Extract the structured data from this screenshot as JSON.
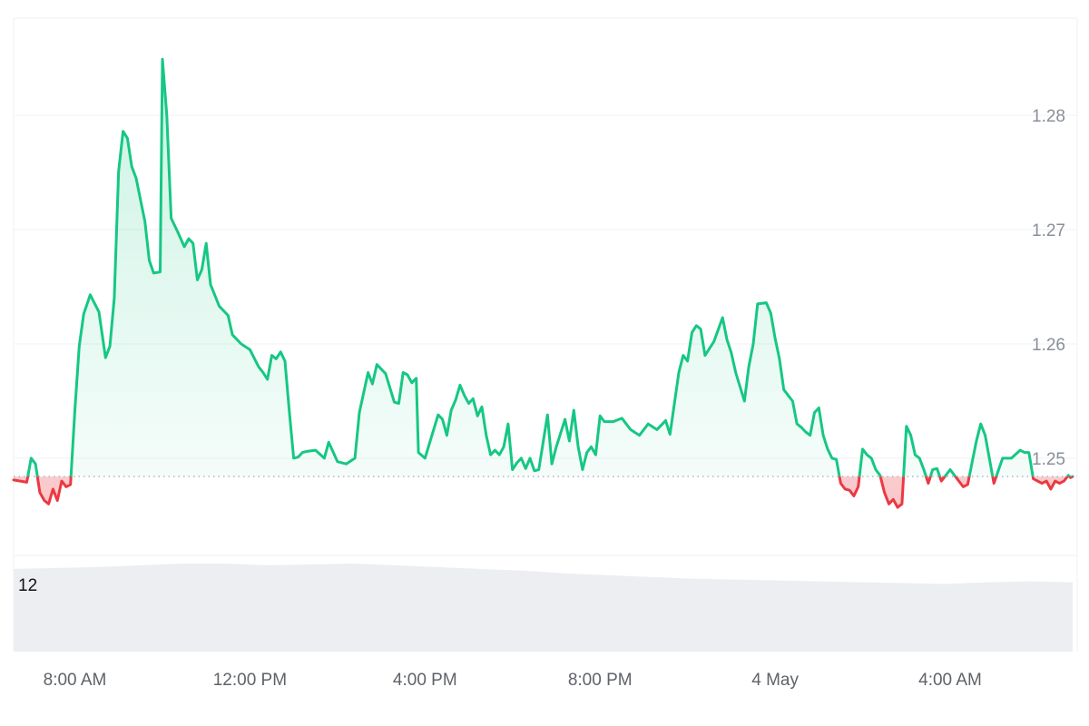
{
  "chart_data": {
    "type": "line",
    "baseline": 1.2484,
    "y_ticks": [
      1.25,
      1.26,
      1.27,
      1.28
    ],
    "y_tick_labels": [
      "1.25",
      "1.26",
      "1.27",
      "1.28"
    ],
    "ylim": [
      1.2415,
      1.2885
    ],
    "x_ticks": [
      {
        "label": "8:00 AM",
        "t": 8
      },
      {
        "label": "12:00 PM",
        "t": 12
      },
      {
        "label": "4:00 PM",
        "t": 16
      },
      {
        "label": "8:00 PM",
        "t": 20
      },
      {
        "label": "4 May",
        "t": 24
      },
      {
        "label": "4:00 AM",
        "t": 28
      }
    ],
    "xlim": [
      6.6,
      30.8
    ],
    "colors": {
      "up": "#16c784",
      "down": "#ea3943",
      "up_fill": "#16c784",
      "down_fill": "#ea3943",
      "grid": "#eff2f5",
      "baseline": "#a6b0c3",
      "volume": "#eceef2"
    },
    "series": [
      {
        "values": [
          [
            6.6,
            1.2481
          ],
          [
            6.9,
            1.2479
          ],
          [
            7.0,
            1.25
          ],
          [
            7.1,
            1.2495
          ],
          [
            7.2,
            1.247
          ],
          [
            7.3,
            1.2463
          ],
          [
            7.4,
            1.246
          ],
          [
            7.5,
            1.2473
          ],
          [
            7.6,
            1.2463
          ],
          [
            7.7,
            1.248
          ],
          [
            7.8,
            1.2475
          ],
          [
            7.9,
            1.2477
          ],
          [
            8.0,
            1.2542
          ],
          [
            8.1,
            1.2598
          ],
          [
            8.2,
            1.2626
          ],
          [
            8.35,
            1.2643
          ],
          [
            8.55,
            1.2628
          ],
          [
            8.7,
            1.2588
          ],
          [
            8.8,
            1.2598
          ],
          [
            8.9,
            1.264
          ],
          [
            9.0,
            1.2751
          ],
          [
            9.1,
            1.2786
          ],
          [
            9.2,
            1.278
          ],
          [
            9.3,
            1.2755
          ],
          [
            9.4,
            1.2745
          ],
          [
            9.6,
            1.2707
          ],
          [
            9.7,
            1.2673
          ],
          [
            9.8,
            1.2662
          ],
          [
            9.95,
            1.2663
          ],
          [
            10.0,
            1.2849
          ],
          [
            10.1,
            1.28
          ],
          [
            10.2,
            1.271
          ],
          [
            10.35,
            1.2698
          ],
          [
            10.5,
            1.2685
          ],
          [
            10.6,
            1.2692
          ],
          [
            10.7,
            1.2688
          ],
          [
            10.8,
            1.2656
          ],
          [
            10.9,
            1.2665
          ],
          [
            11.0,
            1.2688
          ],
          [
            11.1,
            1.2652
          ],
          [
            11.3,
            1.2633
          ],
          [
            11.5,
            1.2625
          ],
          [
            11.6,
            1.2608
          ],
          [
            11.8,
            1.26
          ],
          [
            12.0,
            1.2595
          ],
          [
            12.2,
            1.258
          ],
          [
            12.3,
            1.2575
          ],
          [
            12.4,
            1.2569
          ],
          [
            12.5,
            1.259
          ],
          [
            12.6,
            1.2587
          ],
          [
            12.7,
            1.2593
          ],
          [
            12.8,
            1.2585
          ],
          [
            12.9,
            1.2541
          ],
          [
            13.0,
            1.25
          ],
          [
            13.1,
            1.2501
          ],
          [
            13.2,
            1.2505
          ],
          [
            13.3,
            1.2506
          ],
          [
            13.5,
            1.2507
          ],
          [
            13.7,
            1.25
          ],
          [
            13.8,
            1.2514
          ],
          [
            14.0,
            1.2497
          ],
          [
            14.2,
            1.2495
          ],
          [
            14.4,
            1.25
          ],
          [
            14.5,
            1.254
          ],
          [
            14.7,
            1.2575
          ],
          [
            14.8,
            1.2565
          ],
          [
            14.9,
            1.2582
          ],
          [
            15.0,
            1.2578
          ],
          [
            15.1,
            1.2574
          ],
          [
            15.3,
            1.2549
          ],
          [
            15.4,
            1.2548
          ],
          [
            15.5,
            1.2575
          ],
          [
            15.6,
            1.2573
          ],
          [
            15.7,
            1.2566
          ],
          [
            15.8,
            1.257
          ],
          [
            15.85,
            1.2505
          ],
          [
            16.0,
            1.25
          ],
          [
            16.3,
            1.2538
          ],
          [
            16.4,
            1.2534
          ],
          [
            16.5,
            1.252
          ],
          [
            16.6,
            1.2542
          ],
          [
            16.7,
            1.2551
          ],
          [
            16.8,
            1.2564
          ],
          [
            16.9,
            1.2555
          ],
          [
            17.0,
            1.2548
          ],
          [
            17.1,
            1.2552
          ],
          [
            17.2,
            1.2537
          ],
          [
            17.3,
            1.2545
          ],
          [
            17.4,
            1.252
          ],
          [
            17.5,
            1.2503
          ],
          [
            17.6,
            1.2507
          ],
          [
            17.7,
            1.2503
          ],
          [
            17.8,
            1.251
          ],
          [
            17.9,
            1.253
          ],
          [
            18.0,
            1.249
          ],
          [
            18.1,
            1.2496
          ],
          [
            18.2,
            1.25
          ],
          [
            18.3,
            1.2491
          ],
          [
            18.4,
            1.25
          ],
          [
            18.5,
            1.2489
          ],
          [
            18.6,
            1.249
          ],
          [
            18.8,
            1.2538
          ],
          [
            18.9,
            1.2495
          ],
          [
            19.0,
            1.251
          ],
          [
            19.2,
            1.2534
          ],
          [
            19.3,
            1.2515
          ],
          [
            19.4,
            1.2542
          ],
          [
            19.5,
            1.251
          ],
          [
            19.6,
            1.249
          ],
          [
            19.7,
            1.2505
          ],
          [
            19.8,
            1.251
          ],
          [
            19.9,
            1.2503
          ],
          [
            20.0,
            1.2537
          ],
          [
            20.1,
            1.2532
          ],
          [
            20.3,
            1.2532
          ],
          [
            20.5,
            1.2535
          ],
          [
            20.7,
            1.2525
          ],
          [
            20.9,
            1.252
          ],
          [
            21.1,
            1.253
          ],
          [
            21.3,
            1.2525
          ],
          [
            21.5,
            1.2533
          ],
          [
            21.6,
            1.2521
          ],
          [
            21.8,
            1.2575
          ],
          [
            21.9,
            1.259
          ],
          [
            22.0,
            1.2585
          ],
          [
            22.1,
            1.261
          ],
          [
            22.2,
            1.2616
          ],
          [
            22.3,
            1.2613
          ],
          [
            22.4,
            1.259
          ],
          [
            22.6,
            1.2602
          ],
          [
            22.8,
            1.2623
          ],
          [
            22.9,
            1.2604
          ],
          [
            23.0,
            1.2592
          ],
          [
            23.1,
            1.2575
          ],
          [
            23.3,
            1.255
          ],
          [
            23.4,
            1.258
          ],
          [
            23.5,
            1.26
          ],
          [
            23.6,
            1.2635
          ],
          [
            23.8,
            1.2636
          ],
          [
            23.9,
            1.2627
          ],
          [
            24.0,
            1.2605
          ],
          [
            24.1,
            1.2587
          ],
          [
            24.2,
            1.256
          ],
          [
            24.3,
            1.2555
          ],
          [
            24.4,
            1.255
          ],
          [
            24.5,
            1.253
          ],
          [
            24.6,
            1.2527
          ],
          [
            24.7,
            1.2523
          ],
          [
            24.8,
            1.252
          ],
          [
            24.9,
            1.254
          ],
          [
            25.0,
            1.2544
          ],
          [
            25.1,
            1.252
          ],
          [
            25.2,
            1.2508
          ],
          [
            25.3,
            1.25
          ],
          [
            25.4,
            1.2499
          ],
          [
            25.5,
            1.2478
          ],
          [
            25.6,
            1.2473
          ],
          [
            25.7,
            1.2472
          ],
          [
            25.8,
            1.2467
          ],
          [
            25.9,
            1.2475
          ],
          [
            26.0,
            1.2508
          ],
          [
            26.1,
            1.2503
          ],
          [
            26.2,
            1.25
          ],
          [
            26.3,
            1.249
          ],
          [
            26.4,
            1.2485
          ],
          [
            26.5,
            1.247
          ],
          [
            26.6,
            1.246
          ],
          [
            26.7,
            1.2464
          ],
          [
            26.8,
            1.2457
          ],
          [
            26.9,
            1.246
          ],
          [
            27.0,
            1.2528
          ],
          [
            27.1,
            1.252
          ],
          [
            27.2,
            1.2503
          ],
          [
            27.3,
            1.25
          ],
          [
            27.4,
            1.249
          ],
          [
            27.5,
            1.2478
          ],
          [
            27.6,
            1.249
          ],
          [
            27.7,
            1.2491
          ],
          [
            27.8,
            1.248
          ],
          [
            28.0,
            1.249
          ],
          [
            28.2,
            1.248
          ],
          [
            28.3,
            1.2475
          ],
          [
            28.4,
            1.2477
          ],
          [
            28.6,
            1.2515
          ],
          [
            28.7,
            1.253
          ],
          [
            28.8,
            1.252
          ],
          [
            29.0,
            1.2478
          ],
          [
            29.2,
            1.25
          ],
          [
            29.4,
            1.25
          ],
          [
            29.6,
            1.2507
          ],
          [
            29.7,
            1.2505
          ],
          [
            29.8,
            1.2505
          ],
          [
            29.9,
            1.2482
          ],
          [
            30.0,
            1.248
          ],
          [
            30.1,
            1.2478
          ],
          [
            30.2,
            1.248
          ],
          [
            30.3,
            1.2473
          ],
          [
            30.4,
            1.248
          ],
          [
            30.5,
            1.2478
          ],
          [
            30.6,
            1.248
          ],
          [
            30.7,
            1.2485
          ],
          [
            30.75,
            1.2483
          ],
          [
            30.8,
            1.2484
          ]
        ]
      }
    ],
    "volume_label": "12",
    "volume_levels": [
      0.93,
      0.94,
      0.95,
      0.97,
      0.99,
      0.99,
      0.97,
      0.98,
      0.99,
      0.97,
      0.95,
      0.93,
      0.91,
      0.88,
      0.86,
      0.84,
      0.82,
      0.81,
      0.8,
      0.79,
      0.78,
      0.77,
      0.76,
      0.78,
      0.79,
      0.78
    ]
  }
}
